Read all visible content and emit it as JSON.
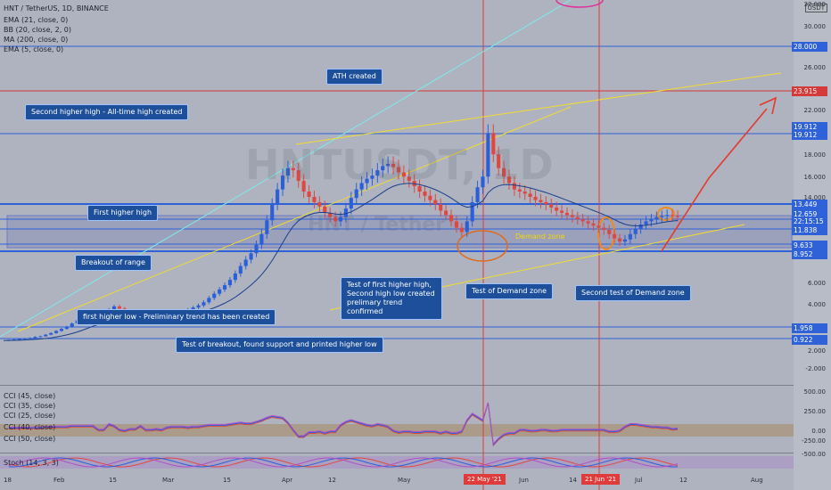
{
  "header": {
    "title": "HNT / TetherUS, 1D, BINANCE",
    "indicators": [
      "EMA (21, close, 0)",
      "BB (20, close, 2, 0)",
      "MA (200, close, 0)",
      "EMA (5, close, 0)"
    ]
  },
  "watermark": {
    "big": "HNTUSDT, 1D",
    "small": "HNT / Tether"
  },
  "currency": "USDT",
  "annotations": {
    "ath": "ATH created",
    "second_higher_high": "Second higher high - All-time high created",
    "first_higher_high": "First higher high",
    "breakout": "Breakout of range",
    "first_higher_low": "first higher low - Preliminary trend has been created",
    "test_breakout": "Test of breakout, found support and printed higher low",
    "test_first_higher_high": "Test of first higher high, Second high low created prelimary trend confirmed",
    "test_demand": "Test of Demand zone",
    "second_test_demand": "Second test of Demand zone",
    "demand_zone": "Demand zone"
  },
  "price_labels": [
    {
      "text": "28.000",
      "color": "#2f62d8"
    },
    {
      "text": "23.915",
      "color": "#d43a3a"
    },
    {
      "text": "19.912",
      "color": "#2f62d8"
    },
    {
      "text": "19.912",
      "color": "#2f62d8"
    },
    {
      "text": "13.449",
      "color": "#2f62d8"
    },
    {
      "text": "12.659",
      "color": "#2f62d8"
    },
    {
      "text": "22:15:15",
      "color": "#2f62d8"
    },
    {
      "text": "11.838",
      "color": "#2f62d8"
    },
    {
      "text": "9.633",
      "color": "#2f62d8"
    },
    {
      "text": "8.952",
      "color": "#2f62d8"
    },
    {
      "text": "1.958",
      "color": "#2f62d8"
    },
    {
      "text": "0.922",
      "color": "#2f62d8"
    }
  ],
  "y_ticks": [
    "32.000",
    "30.000",
    "26.000",
    "22.000",
    "18.000",
    "16.000",
    "14.000",
    "6.000",
    "4.000",
    "2.000",
    "-2.000"
  ],
  "osc_ticks": [
    "500.00",
    "250.00",
    "0.00",
    "-250.00",
    "-500.00"
  ],
  "oscillators": [
    "CCI (45, close)",
    "CCI (35, close)",
    "CCI (25, close)",
    "CCI (40, close)",
    "CCI (50, close)",
    "Stoch (14, 3, 3)"
  ],
  "x_ticks": [
    "18",
    "Feb",
    "15",
    "Mar",
    "15",
    "Apr",
    "12",
    "May",
    "Jun",
    "14",
    "Jul",
    "12",
    "Aug"
  ],
  "x_highlights": [
    "22 May '21",
    "21 Jun '21"
  ],
  "colors": {
    "bg": "#aeb3bf",
    "up": "#2b5fd9",
    "down": "#e0483f",
    "blue_line": "#2f62d8",
    "red_line": "#d43a3a",
    "yellow": "#f2dc2e",
    "cyan": "#7fe9ea",
    "bb": "#1f7a3c",
    "ema": "#1a3f8a"
  },
  "chart_data": {
    "type": "candlestick",
    "title": "HNT / TetherUS, 1D, BINANCE",
    "x_labels": [
      "18",
      "Feb",
      "15",
      "Mar",
      "15",
      "Apr",
      "12",
      "May",
      "Jun",
      "14",
      "Jul",
      "12",
      "Aug"
    ],
    "ylim": [
      -3,
      33
    ],
    "horizontal_levels": [
      28.0,
      23.915,
      19.912,
      13.449,
      12.659,
      11.838,
      9.633,
      8.952,
      1.958,
      0.922
    ],
    "close_path": [
      1.0,
      1.05,
      1.1,
      1.15,
      1.2,
      1.25,
      1.35,
      1.4,
      1.55,
      1.7,
      1.9,
      2.1,
      2.3,
      2.6,
      2.9,
      3.2,
      3.5,
      3.8,
      3.6,
      3.4,
      3.9,
      4.2,
      4.0,
      3.7,
      3.6,
      3.5,
      3.8,
      3.6,
      3.4,
      3.3,
      3.1,
      3.2,
      3.4,
      3.6,
      3.8,
      3.9,
      4.1,
      4.3,
      4.6,
      5.0,
      5.4,
      5.8,
      6.2,
      6.7,
      7.3,
      8.0,
      8.6,
      9.2,
      10.0,
      11.0,
      12.3,
      13.8,
      15.2,
      16.5,
      17.2,
      17.0,
      16.0,
      15.0,
      14.5,
      14.0,
      13.6,
      13.0,
      12.6,
      12.2,
      12.6,
      13.4,
      14.4,
      15.2,
      15.8,
      16.2,
      16.5,
      17.0,
      17.4,
      17.6,
      17.3,
      16.8,
      16.4,
      16.0,
      15.5,
      15.0,
      14.6,
      14.2,
      13.8,
      13.2,
      12.8,
      12.2,
      11.6,
      11.2,
      12.2,
      14.0,
      15.4,
      16.4,
      20.5,
      18.5,
      17.2,
      16.4,
      15.8,
      15.2,
      15.0,
      14.8,
      14.5,
      14.2,
      14.0,
      13.8,
      13.5,
      13.2,
      13.0,
      12.8,
      12.6,
      12.4,
      12.2,
      12.0,
      11.8,
      11.6,
      11.4,
      11.0,
      10.6,
      10.3,
      10.5,
      11.0,
      11.5,
      11.9,
      12.2,
      12.4,
      12.6,
      12.7,
      12.8,
      12.7,
      12.659
    ]
  }
}
